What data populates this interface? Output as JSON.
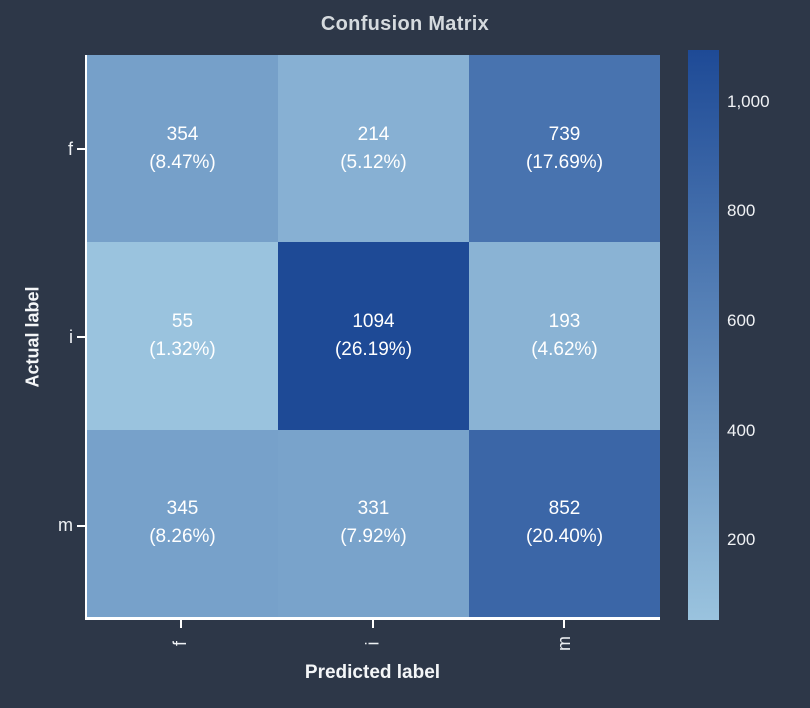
{
  "title": "Confusion Matrix",
  "colors": {
    "background": "#2d3748",
    "title_text": "#d5dade",
    "axis_text": "#f4f6f8",
    "tick_text": "#eef1f4",
    "cell_text": "#ffffff",
    "spine": "#ffffff"
  },
  "chart_data": {
    "type": "heatmap",
    "title": "Confusion Matrix",
    "xlabel": "Predicted label",
    "ylabel": "Actual label",
    "x_categories": [
      "f",
      "i",
      "m"
    ],
    "y_categories": [
      "f",
      "i",
      "m"
    ],
    "values": [
      [
        354,
        214,
        739
      ],
      [
        55,
        1094,
        193
      ],
      [
        345,
        331,
        852
      ]
    ],
    "cells": [
      {
        "row": "f",
        "col": "f",
        "value": 354,
        "value_label": "354",
        "percent_label": "(8.47%)"
      },
      {
        "row": "f",
        "col": "i",
        "value": 214,
        "value_label": "214",
        "percent_label": "(5.12%)"
      },
      {
        "row": "f",
        "col": "m",
        "value": 739,
        "value_label": "739",
        "percent_label": "(17.69%)"
      },
      {
        "row": "i",
        "col": "f",
        "value": 55,
        "value_label": "55",
        "percent_label": "(1.32%)"
      },
      {
        "row": "i",
        "col": "i",
        "value": 1094,
        "value_label": "1094",
        "percent_label": "(26.19%)"
      },
      {
        "row": "i",
        "col": "m",
        "value": 193,
        "value_label": "193",
        "percent_label": "(4.62%)"
      },
      {
        "row": "m",
        "col": "f",
        "value": 345,
        "value_label": "345",
        "percent_label": "(8.26%)"
      },
      {
        "row": "m",
        "col": "i",
        "value": 331,
        "value_label": "331",
        "percent_label": "(7.92%)"
      },
      {
        "row": "m",
        "col": "m",
        "value": 852,
        "value_label": "852",
        "percent_label": "(20.40%)"
      }
    ],
    "colormap": {
      "vmin": 55,
      "vmax": 1094,
      "min_color": "#9ac3de",
      "max_color": "#1e4a96"
    },
    "colorbar": {
      "position": "right",
      "ticks": [
        200,
        400,
        600,
        800,
        1000
      ],
      "tick_labels": [
        "200",
        "400",
        "600",
        "800",
        "1,000"
      ]
    },
    "legend": "none",
    "grid": false
  }
}
